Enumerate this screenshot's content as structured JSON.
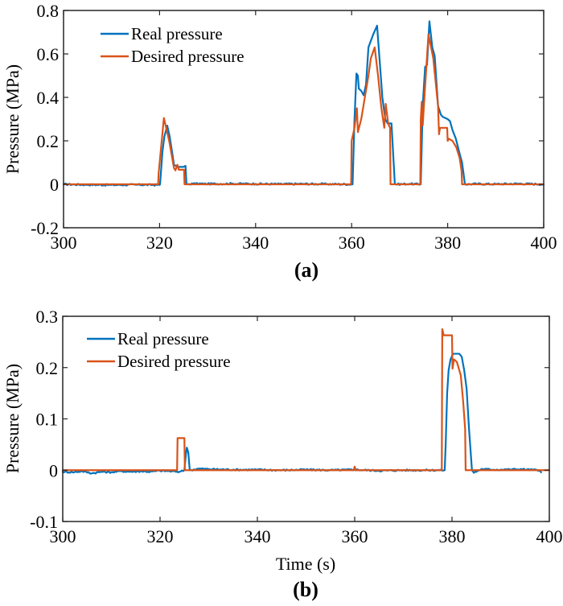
{
  "chart_data": [
    {
      "type": "line",
      "panel_label": "(a)",
      "title": "",
      "xlabel": "",
      "ylabel": "Pressure (MPa)",
      "xlim": [
        300,
        400
      ],
      "ylim": [
        -0.2,
        0.8
      ],
      "xticks": [
        300,
        320,
        340,
        360,
        380,
        400
      ],
      "xtick_labels": [
        "300",
        "320",
        "340",
        "360",
        "380",
        "400"
      ],
      "yticks": [
        -0.2,
        0,
        0.2,
        0.4,
        0.6,
        0.8
      ],
      "ytick_labels": [
        "-0.2",
        "0",
        "0.2",
        "0.4",
        "0.6",
        "0.8"
      ],
      "grid": false,
      "legend": {
        "placement": "top-left",
        "entries": [
          "Real pressure",
          "Desired pressure"
        ]
      },
      "series": [
        {
          "name": "Real pressure",
          "color": "#0072BD",
          "points": [
            [
              300,
              0
            ],
            [
              305,
              -0.002
            ],
            [
              310,
              -0.003
            ],
            [
              315,
              -0.002
            ],
            [
              320,
              -0.003
            ],
            [
              320.1,
              0.0
            ],
            [
              320.6,
              0.15
            ],
            [
              321.0,
              0.22
            ],
            [
              321.6,
              0.27
            ],
            [
              322.1,
              0.22
            ],
            [
              322.6,
              0.15
            ],
            [
              323.0,
              0.09
            ],
            [
              323.4,
              0.085
            ],
            [
              324.0,
              0.08
            ],
            [
              325.0,
              0.08
            ],
            [
              325.4,
              0.085
            ],
            [
              325.6,
              0.0
            ],
            [
              327,
              0.003
            ],
            [
              330,
              0.002
            ],
            [
              335,
              0.003
            ],
            [
              340,
              0.002
            ],
            [
              345,
              0.001
            ],
            [
              350,
              0.002
            ],
            [
              355,
              0.001
            ],
            [
              360.2,
              0.0
            ],
            [
              360.6,
              0.3
            ],
            [
              361.0,
              0.51
            ],
            [
              361.3,
              0.5
            ],
            [
              361.5,
              0.44
            ],
            [
              362.0,
              0.43
            ],
            [
              362.5,
              0.41
            ],
            [
              363.0,
              0.46
            ],
            [
              363.5,
              0.63
            ],
            [
              364.0,
              0.66
            ],
            [
              364.5,
              0.69
            ],
            [
              365.3,
              0.73
            ],
            [
              365.8,
              0.58
            ],
            [
              366.4,
              0.4
            ],
            [
              367.0,
              0.3
            ],
            [
              367.5,
              0.28
            ],
            [
              368.3,
              0.28
            ],
            [
              369.0,
              0.0
            ],
            [
              372,
              0.002
            ],
            [
              374.4,
              0.0
            ],
            [
              374.8,
              0.36
            ],
            [
              375.3,
              0.54
            ],
            [
              375.7,
              0.55
            ],
            [
              376.2,
              0.75
            ],
            [
              376.8,
              0.63
            ],
            [
              377.3,
              0.59
            ],
            [
              378.0,
              0.36
            ],
            [
              378.6,
              0.32
            ],
            [
              379.0,
              0.31
            ],
            [
              380.0,
              0.3
            ],
            [
              380.5,
              0.29
            ],
            [
              381.0,
              0.25
            ],
            [
              381.7,
              0.21
            ],
            [
              382.5,
              0.14
            ],
            [
              383.0,
              0.1
            ],
            [
              383.6,
              0.0
            ],
            [
              386,
              0.002
            ],
            [
              390,
              0.001
            ],
            [
              395,
              0.003
            ],
            [
              400,
              0.0
            ]
          ]
        },
        {
          "name": "Desired pressure",
          "color": "#D95319",
          "points": [
            [
              300,
              0
            ],
            [
              319.7,
              0
            ],
            [
              319.8,
              0.05
            ],
            [
              320.9,
              0.305
            ],
            [
              322.0,
              0.2
            ],
            [
              323.0,
              0.075
            ],
            [
              323.3,
              0.064
            ],
            [
              323.7,
              0.09
            ],
            [
              324.0,
              0.067
            ],
            [
              325.1,
              0.067
            ],
            [
              325.2,
              0.0
            ],
            [
              359.9,
              0.0
            ],
            [
              360.0,
              0.2
            ],
            [
              360.6,
              0.26
            ],
            [
              361.1,
              0.35
            ],
            [
              361.3,
              0.24
            ],
            [
              362.0,
              0.3
            ],
            [
              363.5,
              0.5
            ],
            [
              364.0,
              0.58
            ],
            [
              364.8,
              0.63
            ],
            [
              365.5,
              0.5
            ],
            [
              366.2,
              0.35
            ],
            [
              366.8,
              0.26
            ],
            [
              367.1,
              0.37
            ],
            [
              367.6,
              0.28
            ],
            [
              368.0,
              0.26
            ],
            [
              368.1,
              0.0
            ],
            [
              374.3,
              0.0
            ],
            [
              374.4,
              0.3
            ],
            [
              374.6,
              0.38
            ],
            [
              374.8,
              0.27
            ],
            [
              375.3,
              0.45
            ],
            [
              376.0,
              0.69
            ],
            [
              377.0,
              0.58
            ],
            [
              378.0,
              0.36
            ],
            [
              378.2,
              0.23
            ],
            [
              378.4,
              0.26
            ],
            [
              379.9,
              0.26
            ],
            [
              380.0,
              0.2
            ],
            [
              380.2,
              0.21
            ],
            [
              381.0,
              0.2
            ],
            [
              381.8,
              0.17
            ],
            [
              382.5,
              0.12
            ],
            [
              382.9,
              0.06
            ],
            [
              383.0,
              0.0
            ],
            [
              400,
              0.0
            ]
          ]
        }
      ]
    },
    {
      "type": "line",
      "panel_label": "(b)",
      "title": "",
      "xlabel": "Time (s)",
      "ylabel": "Pressure (MPa)",
      "xlim": [
        300,
        400
      ],
      "ylim": [
        -0.1,
        0.3
      ],
      "xticks": [
        300,
        320,
        340,
        360,
        380,
        400
      ],
      "xtick_labels": [
        "300",
        "320",
        "340",
        "360",
        "380",
        "400"
      ],
      "yticks": [
        -0.1,
        0,
        0.1,
        0.2,
        0.3
      ],
      "ytick_labels": [
        "-0.1",
        "0",
        "0.1",
        "0.2",
        "0.3"
      ],
      "grid": false,
      "legend": {
        "placement": "top-left",
        "entries": [
          "Real pressure",
          "Desired pressure"
        ]
      },
      "series": [
        {
          "name": "Real pressure",
          "color": "#0072BD",
          "points": [
            [
              300,
              -0.003
            ],
            [
              302,
              -0.004
            ],
            [
              304,
              -0.002
            ],
            [
              306,
              -0.006
            ],
            [
              308,
              -0.003
            ],
            [
              310,
              -0.004
            ],
            [
              312,
              -0.002
            ],
            [
              314,
              -0.003
            ],
            [
              316,
              -0.002
            ],
            [
              318,
              -0.003
            ],
            [
              320,
              -0.001
            ],
            [
              322,
              -0.002
            ],
            [
              324,
              -0.003
            ],
            [
              325.0,
              0.0
            ],
            [
              325.3,
              0.03
            ],
            [
              325.5,
              0.044
            ],
            [
              325.8,
              0.035
            ],
            [
              326.1,
              0.0
            ],
            [
              328,
              0.003
            ],
            [
              330,
              0.002
            ],
            [
              335,
              0.001
            ],
            [
              340,
              0.001
            ],
            [
              345,
              0.0
            ],
            [
              350,
              0.001
            ],
            [
              355,
              0.0
            ],
            [
              360,
              0.001
            ],
            [
              365,
              -0.001
            ],
            [
              370,
              0.0
            ],
            [
              375,
              0.0
            ],
            [
              378.5,
              0.0
            ],
            [
              378.7,
              0.05
            ],
            [
              379.0,
              0.15
            ],
            [
              379.3,
              0.195
            ],
            [
              379.7,
              0.216
            ],
            [
              380.2,
              0.227
            ],
            [
              381.5,
              0.227
            ],
            [
              382.0,
              0.221
            ],
            [
              382.5,
              0.195
            ],
            [
              383.0,
              0.159
            ],
            [
              383.5,
              0.08
            ],
            [
              384.1,
              0.0
            ],
            [
              384.5,
              -0.005
            ],
            [
              386,
              0.002
            ],
            [
              390,
              0.001
            ],
            [
              394,
              0.002
            ],
            [
              398,
              0.0
            ],
            [
              398.3,
              -0.004
            ]
          ]
        },
        {
          "name": "Desired pressure",
          "color": "#D95319",
          "points": [
            [
              300,
              0
            ],
            [
              323.5,
              0
            ],
            [
              323.6,
              0.0625
            ],
            [
              325.0,
              0.0625
            ],
            [
              325.1,
              0.0
            ],
            [
              359.8,
              0.0
            ],
            [
              360.0,
              0.007
            ],
            [
              360.2,
              0.0
            ],
            [
              377.9,
              0.0
            ],
            [
              378.0,
              0.275
            ],
            [
              378.3,
              0.263
            ],
            [
              380.0,
              0.263
            ],
            [
              380.1,
              0.198
            ],
            [
              380.4,
              0.216
            ],
            [
              381.0,
              0.211
            ],
            [
              381.8,
              0.185
            ],
            [
              382.3,
              0.133
            ],
            [
              382.7,
              0.08
            ],
            [
              382.8,
              0.0
            ],
            [
              400,
              0.0
            ]
          ]
        }
      ]
    }
  ]
}
